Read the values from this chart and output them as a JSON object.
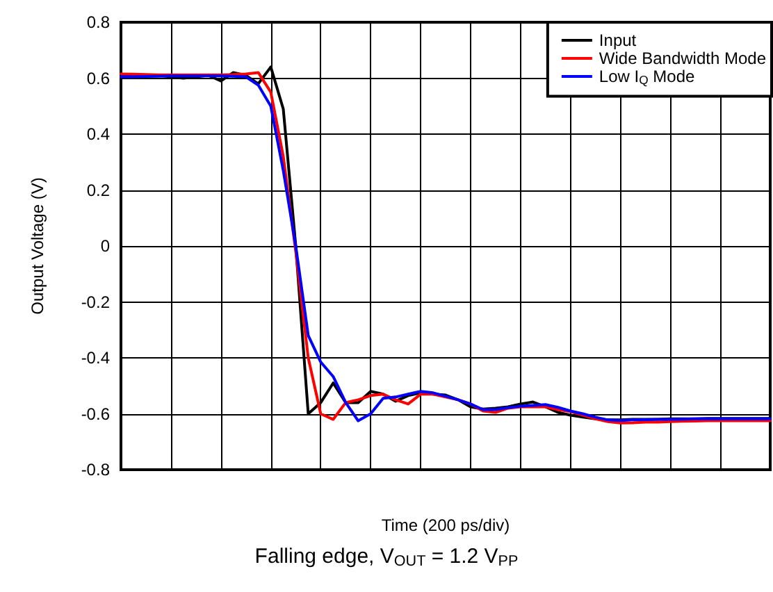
{
  "chart_data": {
    "type": "line",
    "xlabel": "Time (200 ps/div)",
    "ylabel": "Output Voltage (V)",
    "annotations": [
      "Falling edge, V$_{OUT}$ = 1.2 V$_{PP}$"
    ],
    "categories": [
      null,
      null,
      null,
      null,
      null,
      null,
      null,
      null,
      null,
      null,
      null,
      null,
      null,
      null,
      null,
      null,
      null,
      null,
      null,
      null,
      null,
      null,
      null,
      null,
      null,
      null,
      null,
      null,
      null,
      null,
      null,
      null,
      null,
      null,
      null,
      null,
      null,
      null,
      null,
      null,
      null,
      null,
      null,
      null,
      null,
      null,
      null,
      null,
      null,
      null,
      null,
      null,
      null
    ],
    "ylim": [
      -0.8,
      0.8
    ],
    "yticks": [
      -0.8,
      -0.6,
      -0.4,
      -0.2,
      0,
      0.2,
      0.4,
      0.6,
      0.8
    ],
    "tick_labels": "y",
    "grid": true,
    "legend": "top right",
    "line_style": "solid",
    "series": [
      {
        "name": "Input",
        "color": "#000000",
        "values": [
          0.61,
          0.605,
          0.61,
          0.61,
          0.605,
          0.6,
          0.605,
          0.61,
          0.59,
          0.62,
          0.61,
          0.58,
          0.64,
          0.49,
          0.0,
          -0.6,
          -0.56,
          -0.49,
          -0.56,
          -0.56,
          -0.52,
          -0.53,
          -0.555,
          -0.535,
          -0.525,
          -0.53,
          -0.533,
          -0.55,
          -0.575,
          -0.583,
          -0.58,
          -0.575,
          -0.565,
          -0.558,
          -0.575,
          -0.595,
          -0.605,
          -0.612,
          -0.618,
          -0.622,
          -0.622,
          -0.62,
          -0.62,
          -0.62,
          -0.618,
          -0.618,
          -0.618,
          -0.617,
          -0.617,
          -0.617,
          -0.617,
          -0.617,
          -0.617
        ]
      },
      {
        "name": "Wide Bandwidth Mode",
        "color": "#ff0000",
        "values": [
          0.615,
          0.614,
          0.613,
          0.612,
          0.612,
          0.612,
          0.612,
          0.612,
          0.612,
          0.613,
          0.615,
          0.62,
          0.55,
          0.32,
          -0.02,
          -0.4,
          -0.6,
          -0.62,
          -0.56,
          -0.55,
          -0.535,
          -0.53,
          -0.55,
          -0.565,
          -0.53,
          -0.53,
          -0.54,
          -0.55,
          -0.565,
          -0.59,
          -0.595,
          -0.58,
          -0.575,
          -0.575,
          -0.575,
          -0.585,
          -0.592,
          -0.605,
          -0.618,
          -0.628,
          -0.633,
          -0.632,
          -0.63,
          -0.63,
          -0.628,
          -0.627,
          -0.626,
          -0.625,
          -0.625,
          -0.625,
          -0.625,
          -0.625,
          -0.625
        ]
      },
      {
        "name": "Low I$_{Q}$ Mode",
        "color": "#0000ff",
        "values": [
          0.605,
          0.605,
          0.606,
          0.607,
          0.608,
          0.608,
          0.608,
          0.608,
          0.608,
          0.607,
          0.605,
          0.575,
          0.5,
          0.27,
          0.0,
          -0.32,
          -0.415,
          -0.467,
          -0.56,
          -0.625,
          -0.6,
          -0.545,
          -0.54,
          -0.53,
          -0.52,
          -0.525,
          -0.537,
          -0.55,
          -0.565,
          -0.585,
          -0.585,
          -0.578,
          -0.573,
          -0.57,
          -0.567,
          -0.577,
          -0.59,
          -0.6,
          -0.612,
          -0.622,
          -0.624,
          -0.622,
          -0.621,
          -0.62,
          -0.62,
          -0.619,
          -0.618,
          -0.618,
          -0.618,
          -0.618,
          -0.618,
          -0.618,
          -0.618
        ]
      }
    ]
  }
}
